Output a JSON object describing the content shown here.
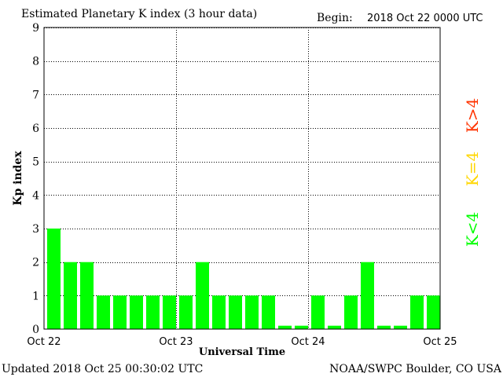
{
  "chart_data": {
    "type": "bar",
    "title": "Estimated Planetary K index (3 hour data)",
    "begin_label": "Begin:",
    "begin_value": "2018 Oct 22 0000 UTC",
    "ylabel": "Kp index",
    "xlabel": "Universal Time",
    "ylim": [
      0,
      9
    ],
    "yticks": [
      "0",
      "1",
      "2",
      "3",
      "4",
      "5",
      "6",
      "7",
      "8",
      "9"
    ],
    "xticks": [
      "Oct 22",
      "Oct 23",
      "Oct 24",
      "Oct 25"
    ],
    "grid": true,
    "values": [
      3,
      2,
      2,
      1,
      1,
      1,
      1,
      1,
      1,
      2,
      1,
      1,
      1,
      1,
      0.1,
      0.1,
      1,
      0.1,
      1,
      2,
      0.1,
      0.1,
      1,
      1
    ],
    "colors": {
      "k_low": "#00ff00",
      "k_equal": "#ffd700",
      "k_high": "#ff3300",
      "plot_border": "#000000",
      "grid": "#000000"
    },
    "legend": [
      "K<4",
      "K=4",
      "K>4"
    ]
  },
  "footer": {
    "updated": "Updated 2018 Oct 25 00:30:02 UTC",
    "source": "NOAA/SWPC Boulder, CO USA"
  }
}
